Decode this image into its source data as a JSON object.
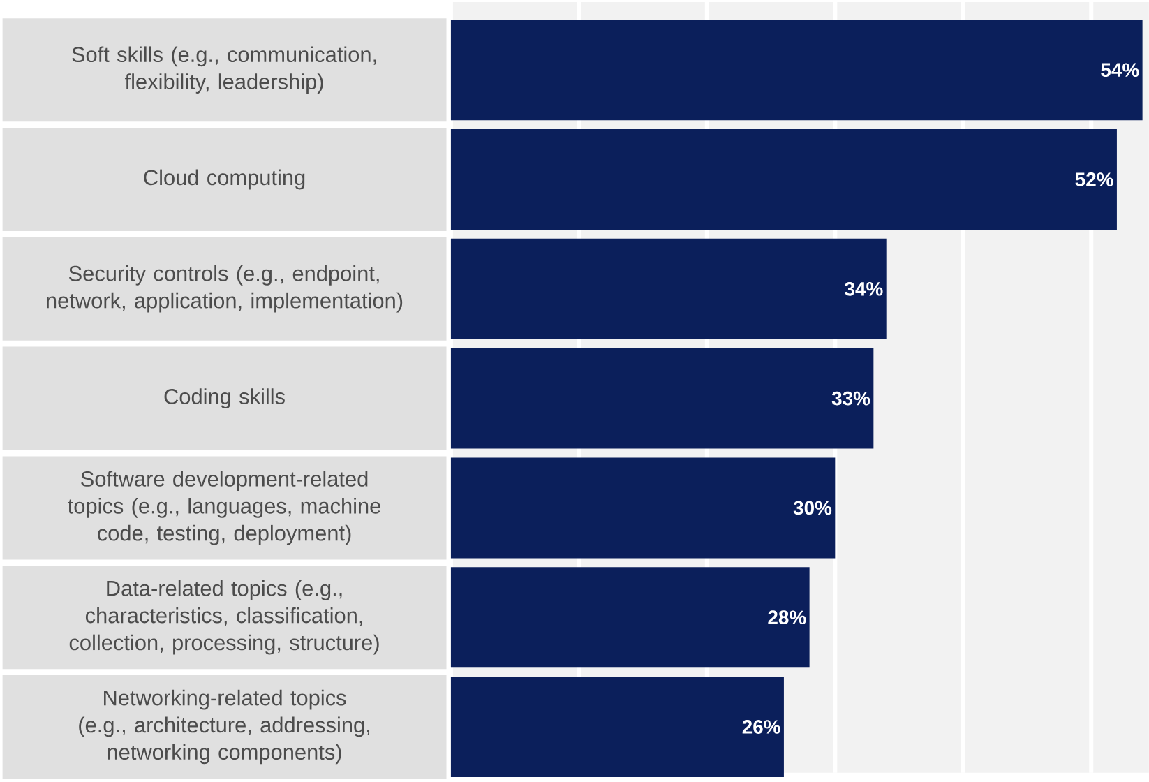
{
  "chart_data": {
    "type": "bar",
    "orientation": "horizontal",
    "categories": [
      "Soft skills (e.g., communication, flexibility, leadership)",
      "Cloud computing",
      "Security controls (e.g., endpoint, network, application, implementation)",
      "Coding skills",
      "Software development-related topics (e.g., languages, machine code, testing, deployment)",
      "Data-related topics (e.g., characteristics, classification, collection, processing, structure)",
      "Networking-related topics (e.g., architecture, addressing, networking components)"
    ],
    "values": [
      54,
      52,
      34,
      33,
      30,
      28,
      26
    ],
    "value_labels": [
      "54%",
      "52%",
      "34%",
      "33%",
      "30%",
      "28%",
      "26%"
    ],
    "color": "#0b1f5b",
    "xlim": [
      0,
      54.5
    ],
    "xticks": [
      {
        "value": 0,
        "label": null
      },
      {
        "value": 10,
        "label": null
      },
      {
        "value": 20,
        "label": null
      },
      {
        "value": 30,
        "label": null
      },
      {
        "value": 40,
        "label": null
      },
      {
        "value": 50,
        "label": null
      }
    ],
    "grid": "x",
    "tick_labels": "y"
  }
}
